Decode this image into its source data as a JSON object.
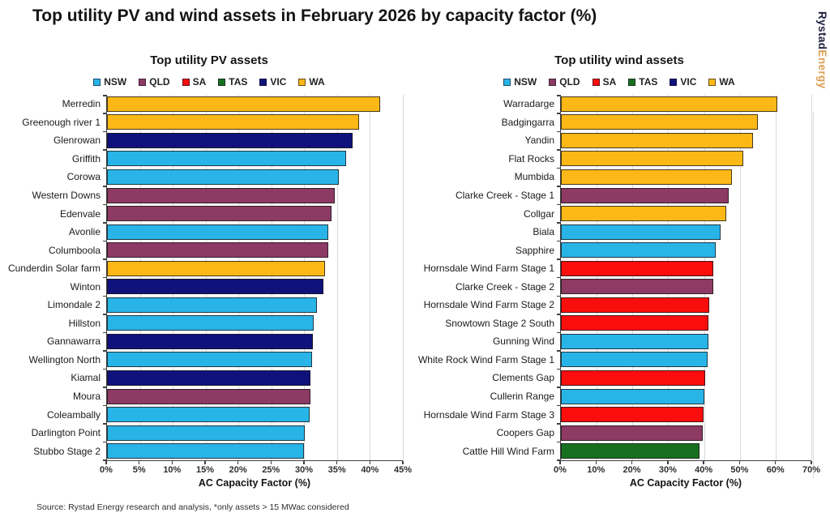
{
  "page_title": "Top utility PV and wind assets in February 2026 by capacity factor (%)",
  "logo": {
    "text_primary": "Rystad",
    "text_secondary": "Energy"
  },
  "source_note": "Source: Rystad Energy research and analysis, *only assets > 15 MWac considered",
  "legend": [
    "NSW",
    "QLD",
    "SA",
    "TAS",
    "VIC",
    "WA"
  ],
  "colors": {
    "NSW": "#29B4E8",
    "QLD": "#8D3A64",
    "SA": "#F90D0D",
    "TAS": "#17701F",
    "VIC": "#10127C",
    "WA": "#FBB817",
    "logo_primary": "#1E1E3C",
    "logo_secondary": "#DC9E54"
  },
  "chart_data": [
    {
      "type": "bar",
      "orientation": "horizontal",
      "title": "Top utility PV assets",
      "xlabel": "AC Capacity Factor (%)",
      "xlim": [
        0,
        45
      ],
      "xticks": [
        "0%",
        "5%",
        "10%",
        "15%",
        "20%",
        "25%",
        "30%",
        "35%",
        "40%",
        "45%"
      ],
      "grid": "vertical",
      "legend_position": "top",
      "value_unit": "%",
      "bars": [
        {
          "label": "Merredin",
          "state": "WA",
          "value": 41.5
        },
        {
          "label": "Greenough river 1",
          "state": "WA",
          "value": 38.3
        },
        {
          "label": "Glenrowan",
          "state": "VIC",
          "value": 37.3
        },
        {
          "label": "Griffith",
          "state": "NSW",
          "value": 36.4
        },
        {
          "label": "Corowa",
          "state": "NSW",
          "value": 35.2
        },
        {
          "label": "Western Downs",
          "state": "QLD",
          "value": 34.6
        },
        {
          "label": "Edenvale",
          "state": "QLD",
          "value": 34.1
        },
        {
          "label": "Avonlie",
          "state": "NSW",
          "value": 33.7
        },
        {
          "label": "Columboola",
          "state": "QLD",
          "value": 33.6
        },
        {
          "label": "Cunderdin Solar farm",
          "state": "WA",
          "value": 33.2
        },
        {
          "label": "Winton",
          "state": "VIC",
          "value": 32.9
        },
        {
          "label": "Limondale 2",
          "state": "NSW",
          "value": 31.9
        },
        {
          "label": "Hillston",
          "state": "NSW",
          "value": 31.4
        },
        {
          "label": "Gannawarra",
          "state": "VIC",
          "value": 31.3
        },
        {
          "label": "Wellington North",
          "state": "NSW",
          "value": 31.2
        },
        {
          "label": "Kiamal",
          "state": "VIC",
          "value": 31.0
        },
        {
          "label": "Moura",
          "state": "QLD",
          "value": 31.0
        },
        {
          "label": "Coleambally",
          "state": "NSW",
          "value": 30.8
        },
        {
          "label": "Darlington Point",
          "state": "NSW",
          "value": 30.1
        },
        {
          "label": "Stubbo Stage 2",
          "state": "NSW",
          "value": 29.9
        }
      ]
    },
    {
      "type": "bar",
      "orientation": "horizontal",
      "title": "Top utility wind assets",
      "xlabel": "AC Capacity Factor (%)",
      "xlim": [
        0,
        70
      ],
      "xticks": [
        "0%",
        "10%",
        "20%",
        "30%",
        "40%",
        "50%",
        "60%",
        "70%"
      ],
      "grid": "vertical",
      "legend_position": "top",
      "value_unit": "%",
      "bars": [
        {
          "label": "Warradarge",
          "state": "WA",
          "value": 60.5
        },
        {
          "label": "Badgingarra",
          "state": "WA",
          "value": 55.0
        },
        {
          "label": "Yandin",
          "state": "WA",
          "value": 53.6
        },
        {
          "label": "Flat Rocks",
          "state": "WA",
          "value": 51.0
        },
        {
          "label": "Mumbida",
          "state": "WA",
          "value": 47.9
        },
        {
          "label": "Clarke Creek - Stage 1",
          "state": "QLD",
          "value": 46.9
        },
        {
          "label": "Collgar",
          "state": "WA",
          "value": 46.2
        },
        {
          "label": "Biala",
          "state": "NSW",
          "value": 44.6
        },
        {
          "label": "Sapphire",
          "state": "NSW",
          "value": 43.2
        },
        {
          "label": "Hornsdale Wind Farm Stage 1",
          "state": "SA",
          "value": 42.7
        },
        {
          "label": "Clarke Creek - Stage 2",
          "state": "QLD",
          "value": 42.5
        },
        {
          "label": "Hornsdale Wind Farm Stage 2",
          "state": "SA",
          "value": 41.5
        },
        {
          "label": "Snowtown Stage 2 South",
          "state": "SA",
          "value": 41.3
        },
        {
          "label": "Gunning Wind",
          "state": "NSW",
          "value": 41.2
        },
        {
          "label": "White Rock Wind Farm Stage 1",
          "state": "NSW",
          "value": 40.9
        },
        {
          "label": "Clements Gap",
          "state": "SA",
          "value": 40.4
        },
        {
          "label": "Cullerin Range",
          "state": "NSW",
          "value": 40.0
        },
        {
          "label": "Hornsdale Wind Farm Stage 3",
          "state": "SA",
          "value": 39.8
        },
        {
          "label": "Coopers Gap",
          "state": "QLD",
          "value": 39.7
        },
        {
          "label": "Cattle Hill Wind Farm",
          "state": "TAS",
          "value": 38.8
        }
      ]
    }
  ]
}
